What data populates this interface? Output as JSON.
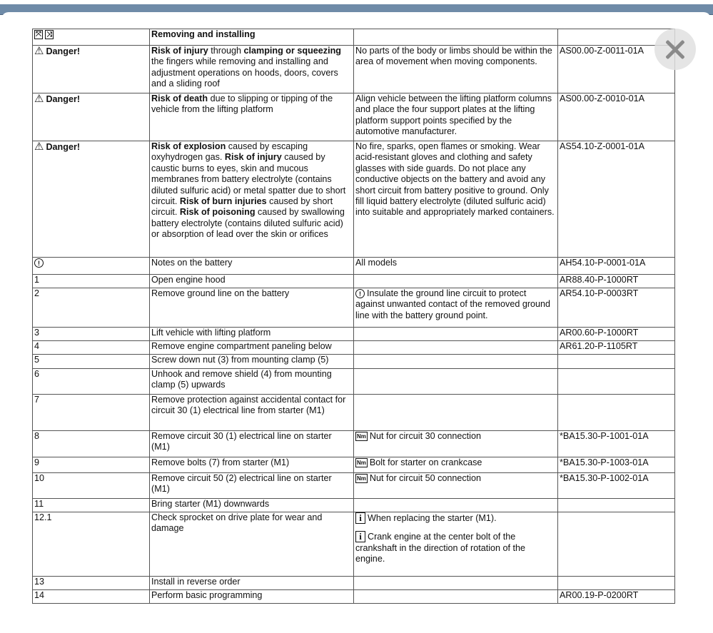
{
  "header": {
    "icons": [
      "expand-icon",
      "collapse-icon"
    ],
    "title": "Removing and installing"
  },
  "close_button": {
    "icon": "close-icon"
  },
  "rows": [
    {
      "c1": {
        "icon": "danger",
        "text": "Danger!"
      },
      "c2": [
        {
          "t": "Risk of injury",
          "b": true
        },
        {
          "t": "  through  "
        },
        {
          "t": "clamping or squeezing",
          "b": true
        },
        {
          "t": " the fingers while removing and installing and adjustment operations on hoods, doors, covers and a sliding roof"
        }
      ],
      "c3": [
        {
          "text": "No parts of the body or limbs should be within the area of movement when moving components."
        }
      ],
      "c4": "AS00.00-Z-0011-01A",
      "h": 67
    },
    {
      "c1": {
        "icon": "danger",
        "text": "Danger!"
      },
      "c2": [
        {
          "t": "Risk of death",
          "b": true
        },
        {
          "t": "  due to slipping or tipping of the vehicle from the lifting platform"
        }
      ],
      "c3": [
        {
          "text": "Align vehicle between the lifting platform columns and place the four support plates  at the lifting platform support points specified by the automotive manufacturer."
        }
      ],
      "c4": "AS00.00-Z-0010-01A",
      "h": 67
    },
    {
      "c1": {
        "icon": "danger",
        "text": "Danger!"
      },
      "c2": [
        {
          "t": "Risk of explosion",
          "b": true
        },
        {
          "t": "  caused by escaping oxyhydrogen gas.  "
        },
        {
          "t": "Risk of injury",
          "b": true
        },
        {
          "t": "  caused by caustic burns to eyes, skin and mucous membranes from battery electrolyte (contains diluted sulfuric acid) or metal spatter due to short circuit.  "
        },
        {
          "t": "Risk of burn injuries",
          "b": true
        },
        {
          "t": "  caused by short circuit.  "
        },
        {
          "t": "Risk of poisoning",
          "b": true
        },
        {
          "t": "  caused by swallowing battery electrolyte (contains diluted sulfuric acid) or absorption of lead over the skin or orifices"
        }
      ],
      "c3": [
        {
          "text": "No fire, sparks, open flames or smoking. Wear acid-resistant gloves and clothing and safety glasses with side guards. Do not place any conductive objects on the battery and avoid any short circuit from battery positive to ground. Only fill liquid battery electrolyte (diluted sulfuric acid) into suitable and appropriately marked containers."
        }
      ],
      "c4": "AS54.10-Z-0001-01A",
      "h": 163
    },
    {
      "c1": {
        "icon": "note",
        "text": ""
      },
      "c2": [
        {
          "t": "Notes on the battery"
        }
      ],
      "c3": [
        {
          "text": "All models"
        }
      ],
      "c4": "AH54.10-P-0001-01A",
      "h": 24
    },
    {
      "c1": {
        "text": "1"
      },
      "c2": [
        {
          "t": "Open engine hood"
        }
      ],
      "c3": [],
      "c4": "AR88.40-P-1000RT",
      "h": 19
    },
    {
      "c1": {
        "text": "2"
      },
      "c2": [
        {
          "t": "Remove ground line on the battery"
        }
      ],
      "c3": [
        {
          "icon": "note",
          "text": "Insulate the ground line circuit to protect against unwanted contact of the removed ground line with the battery ground point."
        }
      ],
      "c4": "AR54.10-P-0003RT",
      "h": 55
    },
    {
      "c1": {
        "text": "3"
      },
      "c2": [
        {
          "t": "Lift vehicle with lifting platform"
        }
      ],
      "c3": [],
      "c4": "AR00.60-P-1000RT",
      "h": 19
    },
    {
      "c1": {
        "text": "4"
      },
      "c2": [
        {
          "t": "Remove engine compartment paneling below"
        }
      ],
      "c3": [],
      "c4": "AR61.20-P-1105RT",
      "h": 19
    },
    {
      "c1": {
        "text": "5"
      },
      "c2": [
        {
          "t": "Screw down nut (3) from mounting clamp (5)"
        }
      ],
      "c3": [],
      "c4": "",
      "h": 20
    },
    {
      "c1": {
        "text": "6"
      },
      "c2": [
        {
          "t": "Unhook and remove shield (4) from mounting clamp (5) upwards"
        }
      ],
      "c3": [],
      "c4": "",
      "h": 36
    },
    {
      "c1": {
        "text": "7"
      },
      "c2": [
        {
          "t": "Remove protection against accidental contact for circuit 30 (1) electrical line from starter (M1)"
        }
      ],
      "c3": [],
      "c4": "",
      "h": 51
    },
    {
      "c1": {
        "text": "8"
      },
      "c2": [
        {
          "t": "Remove circuit 30 (1) electrical line on starter (M1)"
        }
      ],
      "c3": [
        {
          "icon": "Nm",
          "text": "Nut for circuit 30 connection"
        }
      ],
      "c4": "*BA15.30-P-1001-01A",
      "h": 37
    },
    {
      "c1": {
        "text": "9"
      },
      "c2": [
        {
          "t": "Remove bolts (7) from starter (M1)"
        }
      ],
      "c3": [
        {
          "icon": "Nm",
          "text": "Bolt for starter on crankcase"
        }
      ],
      "c4": "*BA15.30-P-1003-01A",
      "h": 22
    },
    {
      "c1": {
        "text": "10"
      },
      "c2": [
        {
          "t": "Remove circuit 50 (2) electrical line on starter (M1)"
        }
      ],
      "c3": [
        {
          "icon": "Nm",
          "text": "Nut for circuit 50 connection"
        }
      ],
      "c4": "*BA15.30-P-1002-01A",
      "h": 36
    },
    {
      "c1": {
        "text": "11"
      },
      "c2": [
        {
          "t": "Bring starter (M1) downwards"
        }
      ],
      "c3": [],
      "c4": "",
      "h": 19
    },
    {
      "c1": {
        "text": "12.1"
      },
      "c2": [
        {
          "t": "Check sprocket on drive plate for wear and damage"
        }
      ],
      "c3": [
        {
          "icon": "i",
          "text": "When replacing the starter (M1)."
        },
        {
          "icon": "i",
          "text": "Crank engine at the center bolt of the crankshaft in the direction of rotation of the engine."
        }
      ],
      "c4": "",
      "h": 90
    },
    {
      "c1": {
        "text": "13"
      },
      "c2": [
        {
          "t": "Install in reverse order"
        }
      ],
      "c3": [],
      "c4": "",
      "h": 19
    },
    {
      "c1": {
        "text": "14"
      },
      "c2": [
        {
          "t": "Perform basic programming"
        }
      ],
      "c3": [],
      "c4": "AR00.19-P-0200RT",
      "h": 19
    }
  ]
}
